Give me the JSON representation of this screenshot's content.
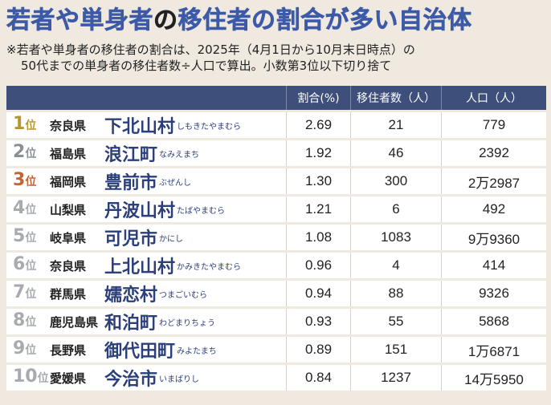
{
  "title": {
    "part1": "若者や単身者",
    "part2": "の",
    "part3": "移住者の割合が多い自治体"
  },
  "note": {
    "line1": "※若者や単身者の移住者の割合は、2025年（4月1日から10月末日時点）の",
    "line2": "50代までの単身者の移住者数÷人口で算出。小数第3位以下切り捨て"
  },
  "colors": {
    "title_accent": "#3d5aa8",
    "title_base": "#222222",
    "header_bg": "#3d4f7a",
    "municipality": "#2b3f7a",
    "rank_gold": "#b8962e",
    "rank_silver": "#8a8f96",
    "rank_bronze": "#c0643a",
    "rank_other": "#a7aaaf"
  },
  "chart_data": {
    "type": "table",
    "columns": [
      "",
      "割合(%)",
      "移住者数（人）",
      "人口（人）"
    ],
    "rank_unit": "位",
    "rows": [
      {
        "rank": "1",
        "prefecture": "奈良県",
        "municipality": "下北山村",
        "kana": "しもきたやまむら",
        "ratio": "2.69",
        "migrants": "21",
        "population": "779"
      },
      {
        "rank": "2",
        "prefecture": "福島県",
        "municipality": "浪江町",
        "kana": "なみえまち",
        "ratio": "1.92",
        "migrants": "46",
        "population": "2392"
      },
      {
        "rank": "3",
        "prefecture": "福岡県",
        "municipality": "豊前市",
        "kana": "ぶぜんし",
        "ratio": "1.30",
        "migrants": "300",
        "population": "2万2987"
      },
      {
        "rank": "4",
        "prefecture": "山梨県",
        "municipality": "丹波山村",
        "kana": "たばやまむら",
        "ratio": "1.21",
        "migrants": "6",
        "population": "492"
      },
      {
        "rank": "5",
        "prefecture": "岐阜県",
        "municipality": "可児市",
        "kana": "かにし",
        "ratio": "1.08",
        "migrants": "1083",
        "population": "9万9360"
      },
      {
        "rank": "6",
        "prefecture": "奈良県",
        "municipality": "上北山村",
        "kana": "かみきたやまむら",
        "ratio": "0.96",
        "migrants": "4",
        "population": "414"
      },
      {
        "rank": "7",
        "prefecture": "群馬県",
        "municipality": "嬬恋村",
        "kana": "つまごいむら",
        "ratio": "0.94",
        "migrants": "88",
        "population": "9326"
      },
      {
        "rank": "8",
        "prefecture": "鹿児島県",
        "municipality": "和泊町",
        "kana": "わどまりちょう",
        "ratio": "0.93",
        "migrants": "55",
        "population": "5868"
      },
      {
        "rank": "9",
        "prefecture": "長野県",
        "municipality": "御代田町",
        "kana": "みよたまち",
        "ratio": "0.89",
        "migrants": "151",
        "population": "1万6871"
      },
      {
        "rank": "10",
        "prefecture": "愛媛県",
        "municipality": "今治市",
        "kana": "いまばりし",
        "ratio": "0.84",
        "migrants": "1237",
        "population": "14万5950"
      }
    ]
  }
}
